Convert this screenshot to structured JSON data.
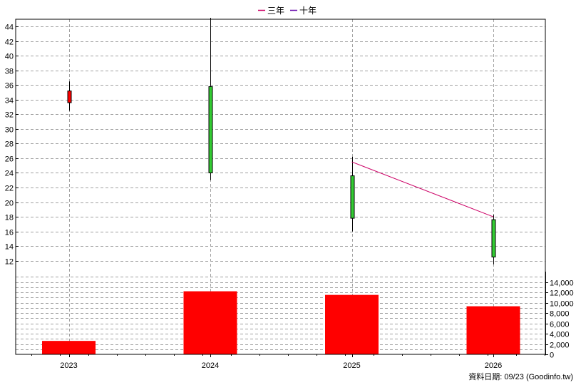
{
  "chart_data": {
    "type": "candlestick+bar",
    "legend": [
      {
        "name": "三年",
        "color": "#cc0066"
      },
      {
        "name": "十年",
        "color": "#6a0dad"
      }
    ],
    "legend_position": "top-center",
    "categories": [
      "2023",
      "2024",
      "2025",
      "2026"
    ],
    "price_axis": {
      "side": "left",
      "range": [
        10.5,
        45
      ],
      "ticks": [
        12,
        14,
        16,
        18,
        20,
        22,
        24,
        26,
        28,
        30,
        32,
        34,
        36,
        38,
        40,
        42,
        44
      ]
    },
    "volume_axis": {
      "side": "right",
      "range": [
        0,
        16000
      ],
      "ticks": [
        0,
        2000,
        4000,
        6000,
        8000,
        10000,
        12000,
        14000
      ],
      "tick_labels": [
        "0",
        "2,000",
        "4,000",
        "6,000",
        "8,000",
        "10,000",
        "12,000",
        "14,000"
      ]
    },
    "candles": [
      {
        "x": "2023",
        "open": 33.6,
        "close": 35.2,
        "high": 36.5,
        "low": 32.5,
        "color": "#ff0000"
      },
      {
        "x": "2024",
        "open": 24.0,
        "close": 35.8,
        "high": 45.2,
        "low": 23.0,
        "color": "#33cc33"
      },
      {
        "x": "2025",
        "open": 23.6,
        "close": 17.8,
        "high": 26.2,
        "low": 16.0,
        "color": "#33cc33"
      },
      {
        "x": "2026",
        "open": 17.6,
        "close": 12.5,
        "high": 18.3,
        "low": 11.5,
        "color": "#33cc33"
      }
    ],
    "volume": [
      {
        "x": "2023",
        "value": 2600
      },
      {
        "x": "2024",
        "value": 12200
      },
      {
        "x": "2025",
        "value": 11500
      },
      {
        "x": "2026",
        "value": 9300
      }
    ],
    "volume_color": "#ff0000",
    "series": [
      {
        "name": "三年",
        "color": "#cc0066",
        "points": [
          {
            "x": "2025",
            "y": 25.5
          },
          {
            "x": "2026",
            "y": 18.0
          }
        ]
      }
    ],
    "grid": true
  },
  "source_text": "資料日期: 09/23  (Goodinfo.tw)"
}
